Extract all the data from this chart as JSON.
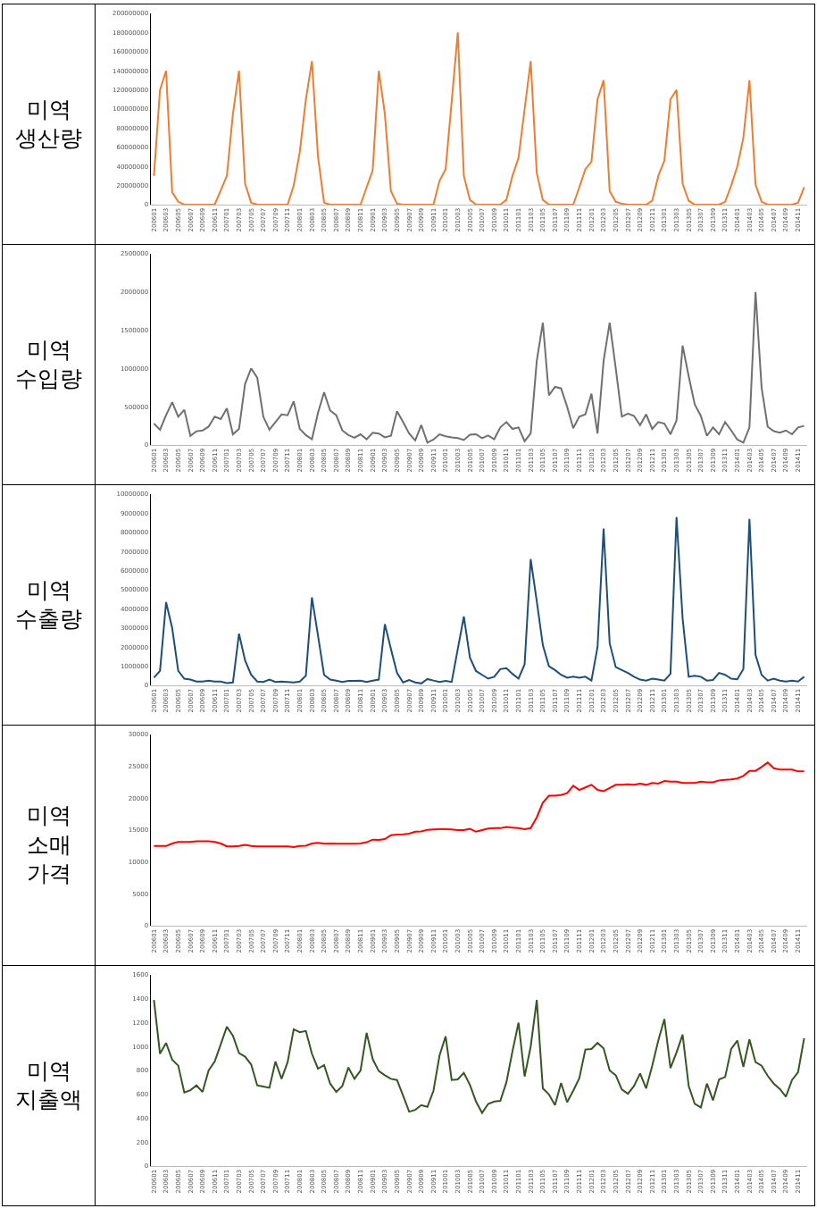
{
  "chart_data": [
    {
      "type": "line",
      "title": "미역\n생산량",
      "color": "#ed7d31",
      "categories": [
        "200601",
        null,
        "200603",
        null,
        "200605",
        null,
        "200607",
        null,
        "200609",
        null,
        "200611",
        null,
        "200701",
        null,
        "200703",
        null,
        "200705",
        null,
        "200707",
        null,
        "200709",
        null,
        "200711",
        null,
        "200801",
        null,
        "200803",
        null,
        "200805",
        null,
        "200807",
        null,
        "200809",
        null,
        "200811",
        null,
        "200901",
        null,
        "200903",
        null,
        "200905",
        null,
        "200907",
        null,
        "200909",
        null,
        "200911",
        null,
        "201001",
        null,
        "201003",
        null,
        "201005",
        null,
        "201007",
        null,
        "201009",
        null,
        "201011",
        null,
        "201101",
        null,
        "201103",
        null,
        "201105",
        null,
        "201107",
        null,
        "201109",
        null,
        "201111",
        null,
        "201201",
        null,
        "201203",
        null,
        "201205",
        null,
        "201207",
        null,
        "201209",
        null,
        "201211",
        null,
        "201301",
        null,
        "201303",
        null,
        "201305",
        null,
        "201307",
        null,
        "201309",
        null,
        "201311",
        null,
        "201401",
        null,
        "201403",
        null,
        "201405",
        null,
        "201407",
        null,
        "201409",
        null,
        "201411",
        null
      ],
      "values": [
        30000000,
        120000000,
        140000000,
        13000000,
        3000000,
        0,
        0,
        0,
        0,
        0,
        0,
        15000000,
        30000000,
        95000000,
        140000000,
        22000000,
        2000000,
        0,
        0,
        0,
        0,
        0,
        0,
        20000000,
        55000000,
        110000000,
        150000000,
        50000000,
        2000000,
        0,
        0,
        0,
        0,
        0,
        0,
        18000000,
        36000000,
        140000000,
        95000000,
        14000000,
        1000000,
        0,
        0,
        0,
        0,
        0,
        0,
        25000000,
        37000000,
        108000000,
        180000000,
        30000000,
        5000000,
        0,
        0,
        0,
        0,
        0,
        5000000,
        30000000,
        49000000,
        100000000,
        150000000,
        33000000,
        5000000,
        0,
        0,
        0,
        0,
        0,
        18000000,
        37000000,
        45000000,
        110000000,
        130000000,
        14000000,
        3000000,
        1000000,
        0,
        0,
        0,
        0,
        4000000,
        30000000,
        46000000,
        110000000,
        120000000,
        22000000,
        4000000,
        0,
        0,
        0,
        0,
        0,
        3000000,
        20000000,
        40000000,
        70000000,
        130000000,
        21000000,
        3000000,
        0,
        0,
        0,
        0,
        0,
        2000000,
        18000000
      ],
      "ylim": [
        0,
        200000000
      ],
      "yticks": [
        0,
        20000000,
        40000000,
        60000000,
        80000000,
        100000000,
        120000000,
        140000000,
        160000000,
        180000000,
        200000000
      ],
      "grid": false
    },
    {
      "type": "line",
      "title": "미역\n수입량",
      "color": "#707070",
      "categories": [
        "200601",
        null,
        "200603",
        null,
        "200605",
        null,
        "200607",
        null,
        "200609",
        null,
        "200611",
        null,
        "200701",
        null,
        "200703",
        null,
        "200705",
        null,
        "200707",
        null,
        "200709",
        null,
        "200711",
        null,
        "200801",
        null,
        "200803",
        null,
        "200805",
        null,
        "200807",
        null,
        "200809",
        null,
        "200811",
        null,
        "200901",
        null,
        "200903",
        null,
        "200905",
        null,
        "200907",
        null,
        "200909",
        null,
        "200911",
        null,
        "201001",
        null,
        "201003",
        null,
        "201005",
        null,
        "201007",
        null,
        "201009",
        null,
        "201011",
        null,
        "201101",
        null,
        "201103",
        null,
        "201105",
        null,
        "201107",
        null,
        "201109",
        null,
        "201111",
        null,
        "201201",
        null,
        "201203",
        null,
        "201205",
        null,
        "201207",
        null,
        "201209",
        null,
        "201211",
        null,
        "201301",
        null,
        "201303",
        null,
        "201305",
        null,
        "201307",
        null,
        "201309",
        null,
        "201311",
        null,
        "201401",
        null,
        "201403",
        null,
        "201405",
        null,
        "201407",
        null,
        "201409",
        null,
        "201411",
        null
      ],
      "values": [
        280000,
        200000,
        390000,
        560000,
        370000,
        460000,
        120000,
        180000,
        190000,
        240000,
        370000,
        340000,
        480000,
        140000,
        210000,
        800000,
        1000000,
        880000,
        370000,
        200000,
        300000,
        400000,
        390000,
        570000,
        210000,
        130000,
        75000,
        420000,
        690000,
        450000,
        390000,
        190000,
        130000,
        95000,
        140000,
        75000,
        160000,
        150000,
        100000,
        120000,
        440000,
        300000,
        150000,
        60000,
        260000,
        30000,
        70000,
        140000,
        115000,
        100000,
        90000,
        65000,
        135000,
        140000,
        90000,
        125000,
        75000,
        230000,
        300000,
        210000,
        230000,
        50000,
        150000,
        1100000,
        1600000,
        650000,
        760000,
        740000,
        500000,
        220000,
        370000,
        400000,
        670000,
        150000,
        1100000,
        1600000,
        1000000,
        370000,
        410000,
        380000,
        260000,
        400000,
        210000,
        300000,
        280000,
        140000,
        320000,
        1300000,
        900000,
        530000,
        380000,
        120000,
        230000,
        140000,
        300000,
        190000,
        70000,
        30000,
        230000,
        2000000,
        750000,
        240000,
        180000,
        160000,
        190000,
        140000,
        230000,
        250000
      ],
      "ylim": [
        0,
        2500000
      ],
      "yticks": [
        0,
        500000,
        1000000,
        1500000,
        2000000,
        2500000
      ],
      "grid": false
    },
    {
      "type": "line",
      "title": "미역\n수출량",
      "color": "#1f4e79",
      "categories": [
        "200601",
        null,
        "200603",
        null,
        "200605",
        null,
        "200607",
        null,
        "200609",
        null,
        "200611",
        null,
        "200701",
        null,
        "200703",
        null,
        "200705",
        null,
        "200707",
        null,
        "200709",
        null,
        "200711",
        null,
        "200801",
        null,
        "200803",
        null,
        "200805",
        null,
        "200807",
        null,
        "200809",
        null,
        "200811",
        null,
        "200901",
        null,
        "200903",
        null,
        "200905",
        null,
        "200907",
        null,
        "200909",
        null,
        "200911",
        null,
        "201001",
        null,
        "201003",
        null,
        "201005",
        null,
        "201007",
        null,
        "201009",
        null,
        "201011",
        null,
        "201101",
        null,
        "201103",
        null,
        "201105",
        null,
        "201107",
        null,
        "201109",
        null,
        "201111",
        null,
        "201201",
        null,
        "201203",
        null,
        "201205",
        null,
        "201207",
        null,
        "201209",
        null,
        "201211",
        null,
        "201301",
        null,
        "201303",
        null,
        "201305",
        null,
        "201307",
        null,
        "201309",
        null,
        "201311",
        null,
        "201401",
        null,
        "201403",
        null,
        "201405",
        null,
        "201407",
        null,
        "201409",
        null,
        "201411",
        null
      ],
      "values": [
        400000,
        750000,
        4350000,
        3000000,
        750000,
        350000,
        300000,
        200000,
        200000,
        250000,
        200000,
        200000,
        120000,
        150000,
        2700000,
        1300000,
        550000,
        200000,
        180000,
        300000,
        180000,
        200000,
        180000,
        150000,
        200000,
        500000,
        4600000,
        2600000,
        550000,
        300000,
        250000,
        180000,
        230000,
        230000,
        250000,
        180000,
        250000,
        300000,
        3200000,
        1900000,
        650000,
        150000,
        280000,
        150000,
        100000,
        330000,
        250000,
        180000,
        230000,
        180000,
        1900000,
        3600000,
        1450000,
        750000,
        550000,
        350000,
        450000,
        850000,
        900000,
        600000,
        350000,
        1100000,
        6600000,
        4400000,
        2100000,
        1000000,
        800000,
        550000,
        400000,
        450000,
        400000,
        450000,
        250000,
        2000000,
        8200000,
        2200000,
        950000,
        800000,
        650000,
        450000,
        300000,
        250000,
        350000,
        300000,
        250000,
        600000,
        8800000,
        3500000,
        450000,
        500000,
        450000,
        250000,
        280000,
        650000,
        550000,
        350000,
        320000,
        850000,
        8700000,
        1600000,
        550000,
        250000,
        350000,
        250000,
        200000,
        250000,
        200000,
        450000
      ],
      "ylim": [
        0,
        10000000
      ],
      "yticks": [
        0,
        1000000,
        2000000,
        3000000,
        4000000,
        5000000,
        6000000,
        7000000,
        8000000,
        9000000,
        10000000
      ],
      "grid": false
    },
    {
      "type": "line",
      "title": "미역\n소매\n가격",
      "color": "#ff0000",
      "categories": [
        "200601",
        null,
        "200603",
        null,
        "200605",
        null,
        "200607",
        null,
        "200609",
        null,
        "200611",
        null,
        "200701",
        null,
        "200703",
        null,
        "200705",
        null,
        "200707",
        null,
        "200709",
        null,
        "200711",
        null,
        "200801",
        null,
        "200803",
        null,
        "200805",
        null,
        "200807",
        null,
        "200809",
        null,
        "200811",
        null,
        "200901",
        null,
        "200903",
        null,
        "200905",
        null,
        "200907",
        null,
        "200909",
        null,
        "200911",
        null,
        "201001",
        null,
        "201003",
        null,
        "201005",
        null,
        "201007",
        null,
        "201009",
        null,
        "201011",
        null,
        "201101",
        null,
        "201103",
        null,
        "201105",
        null,
        "201107",
        null,
        "201109",
        null,
        "201111",
        null,
        "201201",
        null,
        "201203",
        null,
        "201205",
        null,
        "201207",
        null,
        "201209",
        null,
        "201211",
        null,
        "201301",
        null,
        "201303",
        null,
        "201305",
        null,
        "201307",
        null,
        "201309",
        null,
        "201311",
        null,
        "201401",
        null,
        "201403",
        null,
        "201405",
        null,
        "201407",
        null,
        "201409",
        null,
        "201411",
        null
      ],
      "values": [
        12500,
        12500,
        12500,
        12900,
        13150,
        13150,
        13150,
        13250,
        13250,
        13250,
        13150,
        12900,
        12450,
        12450,
        12500,
        12700,
        12500,
        12450,
        12450,
        12450,
        12450,
        12450,
        12450,
        12350,
        12500,
        12550,
        12900,
        13000,
        12850,
        12900,
        12850,
        12850,
        12850,
        12850,
        12900,
        13100,
        13500,
        13450,
        13600,
        14200,
        14300,
        14350,
        14450,
        14750,
        14800,
        15050,
        15100,
        15150,
        15150,
        15100,
        15000,
        15000,
        15200,
        14750,
        15000,
        15250,
        15300,
        15300,
        15500,
        15400,
        15300,
        15150,
        15300,
        17000,
        19300,
        20400,
        20400,
        20500,
        20800,
        21950,
        21300,
        21700,
        22100,
        21300,
        21100,
        21600,
        22100,
        22100,
        22200,
        22100,
        22300,
        22100,
        22400,
        22300,
        22700,
        22600,
        22600,
        22400,
        22400,
        22400,
        22600,
        22500,
        22500,
        22800,
        22900,
        22950,
        23100,
        23500,
        24300,
        24300,
        24900,
        25600,
        24700,
        24500,
        24500,
        24500,
        24200,
        24200
      ],
      "ylim": [
        0,
        30000
      ],
      "yticks": [
        0,
        5000,
        10000,
        15000,
        20000,
        25000,
        30000
      ],
      "grid": false
    },
    {
      "type": "line",
      "title": "미역\n지출액",
      "color": "#375623",
      "categories": [
        "200601",
        null,
        "200603",
        null,
        "200605",
        null,
        "200607",
        null,
        "200609",
        null,
        "200611",
        null,
        "200701",
        null,
        "200703",
        null,
        "200705",
        null,
        "200707",
        null,
        "200709",
        null,
        "200711",
        null,
        "200801",
        null,
        "200803",
        null,
        "200805",
        null,
        "200807",
        null,
        "200809",
        null,
        "200811",
        null,
        "200901",
        null,
        "200903",
        null,
        "200905",
        null,
        "200907",
        null,
        "200909",
        null,
        "200911",
        null,
        "201001",
        null,
        "201003",
        null,
        "201005",
        null,
        "201007",
        null,
        "201009",
        null,
        "201011",
        null,
        "201101",
        null,
        "201103",
        null,
        "201105",
        null,
        "201107",
        null,
        "201109",
        null,
        "201111",
        null,
        "201201",
        null,
        "201203",
        null,
        "201205",
        null,
        "201207",
        null,
        "201209",
        null,
        "201211",
        null,
        "201301",
        null,
        "201303",
        null,
        "201305",
        null,
        "201307",
        null,
        "201309",
        null,
        "201311",
        null,
        "201401",
        null,
        "201403",
        null,
        "201405",
        null,
        "201407",
        null,
        "201409",
        null,
        "201411",
        null
      ],
      "values": [
        1390,
        940,
        1030,
        890,
        840,
        615,
        635,
        675,
        620,
        800,
        875,
        1020,
        1165,
        1090,
        945,
        915,
        850,
        675,
        665,
        655,
        875,
        730,
        870,
        1145,
        1120,
        1130,
        940,
        815,
        845,
        690,
        620,
        670,
        825,
        730,
        800,
        1115,
        895,
        795,
        760,
        730,
        720,
        590,
        455,
        470,
        510,
        495,
        630,
        925,
        1085,
        720,
        725,
        780,
        680,
        540,
        445,
        520,
        540,
        545,
        700,
        960,
        1200,
        750,
        1000,
        1390,
        650,
        600,
        510,
        695,
        535,
        630,
        735,
        975,
        980,
        1030,
        985,
        800,
        760,
        640,
        605,
        670,
        775,
        650,
        840,
        1050,
        1230,
        820,
        950,
        1100,
        670,
        520,
        490,
        690,
        550,
        725,
        745,
        980,
        1050,
        830,
        1060,
        870,
        840,
        755,
        690,
        645,
        580,
        720,
        785,
        1070
      ],
      "ylim": [
        0,
        1600
      ],
      "yticks": [
        0,
        200,
        400,
        600,
        800,
        1000,
        1200,
        1400,
        1600
      ],
      "grid": false
    }
  ]
}
